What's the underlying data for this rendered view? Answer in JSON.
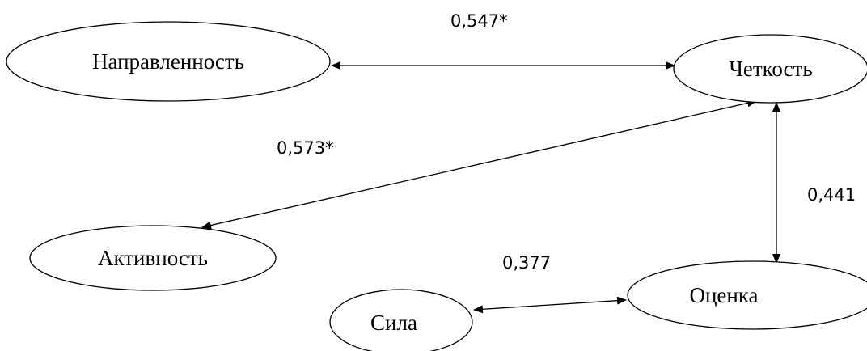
{
  "nodes": {
    "napravlennost": "Направленность",
    "chetkost": "Четкость",
    "aktivnost": "Активность",
    "otsenka": "Оценка",
    "sila": "Сила"
  },
  "edges": {
    "napravlennost_chetkost": "0,547*",
    "chetkost_aktivnost": "0,573*",
    "chetkost_otsenka": "0,441",
    "sila_otsenka": "0,377"
  },
  "colors": {
    "line": "#000000",
    "background": "#ffffff"
  }
}
